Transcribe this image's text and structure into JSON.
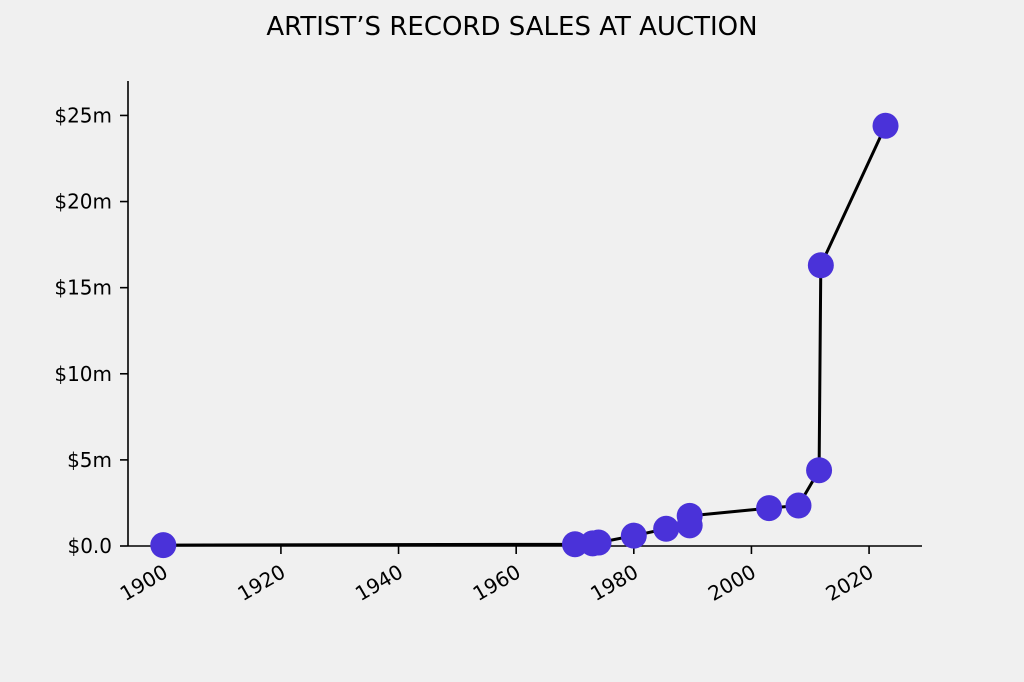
{
  "chart_data": {
    "type": "line",
    "title": "ARTIST’S RECORD SALES AT AUCTION",
    "xlabel": "",
    "ylabel": "",
    "x_ticks": [
      "1900",
      "1920",
      "1940",
      "1960",
      "1980",
      "2000",
      "2020"
    ],
    "y_ticks": [
      "$0.0",
      "$5m",
      "$10m",
      "$15m",
      "$20m",
      "$25m"
    ],
    "xlim": [
      1894,
      2029
    ],
    "ylim": [
      0,
      27
    ],
    "grid": false,
    "colors": {
      "marker": "#4a32d9",
      "line": "#000000",
      "background": "#f0f0f0"
    },
    "series": [
      {
        "values_unit": "millions USD",
        "points": [
          {
            "x": 1900,
            "y": 0.05
          },
          {
            "x": 1970,
            "y": 0.1
          },
          {
            "x": 1973,
            "y": 0.15
          },
          {
            "x": 1974,
            "y": 0.2
          },
          {
            "x": 1980,
            "y": 0.6
          },
          {
            "x": 1985.5,
            "y": 1.0
          },
          {
            "x": 1989.5,
            "y": 1.2
          },
          {
            "x": 1989.5,
            "y": 1.75
          },
          {
            "x": 2003,
            "y": 2.2
          },
          {
            "x": 2008,
            "y": 2.35
          },
          {
            "x": 2011.5,
            "y": 4.4
          },
          {
            "x": 2011.8,
            "y": 16.3
          },
          {
            "x": 2022.8,
            "y": 24.4
          }
        ]
      }
    ]
  }
}
